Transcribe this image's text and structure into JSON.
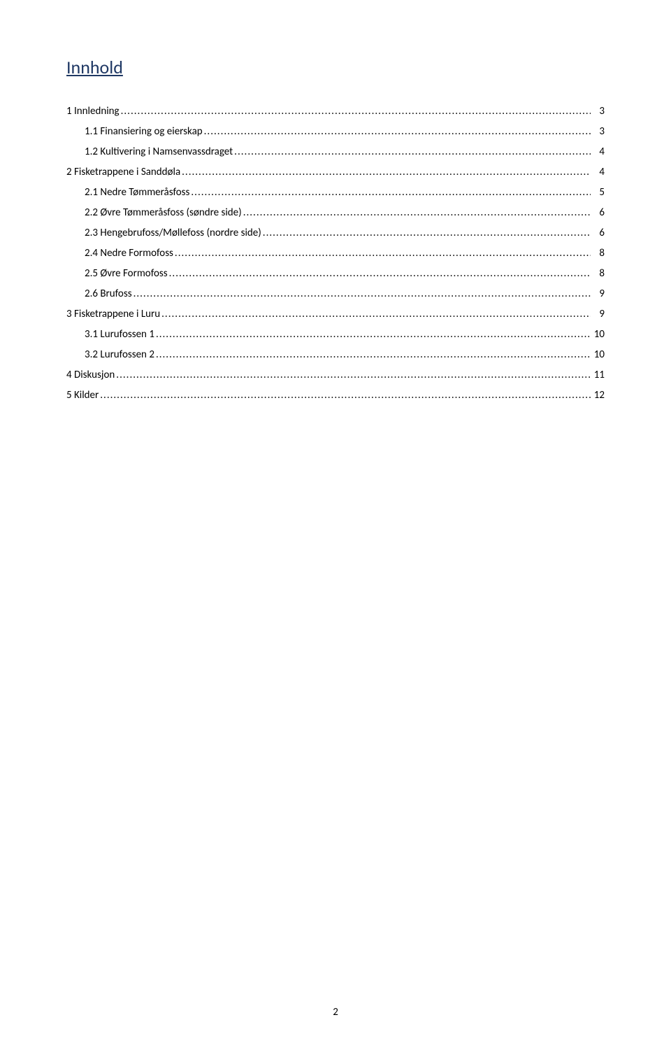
{
  "title": "Innhold",
  "toc": {
    "entries": [
      {
        "level": 1,
        "label": "1 Innledning",
        "page": "3"
      },
      {
        "level": 2,
        "label": "1.1 Finansiering og eierskap",
        "page": "3"
      },
      {
        "level": 2,
        "label": "1.2 Kultivering i Namsenvassdraget",
        "page": "4"
      },
      {
        "level": 1,
        "label": "2 Fisketrappene i Sanddøla",
        "page": "4"
      },
      {
        "level": 2,
        "label": "2.1 Nedre Tømmeråsfoss",
        "page": "5"
      },
      {
        "level": 2,
        "label": "2.2 Øvre Tømmeråsfoss (søndre side)",
        "page": "6"
      },
      {
        "level": 2,
        "label": "2.3 Hengebrufoss/Møllefoss (nordre side)",
        "page": "6"
      },
      {
        "level": 2,
        "label": "2.4 Nedre Formofoss",
        "page": "8"
      },
      {
        "level": 2,
        "label": "2.5 Øvre Formofoss",
        "page": "8"
      },
      {
        "level": 2,
        "label": "2.6 Brufoss",
        "page": "9"
      },
      {
        "level": 1,
        "label": "3 Fisketrappene i Luru",
        "page": "9"
      },
      {
        "level": 2,
        "label": "3.1 Lurufossen 1",
        "page": "10"
      },
      {
        "level": 2,
        "label": "3.2 Lurufossen 2",
        "page": "10"
      },
      {
        "level": 1,
        "label": "4 Diskusjon",
        "page": "11"
      },
      {
        "level": 1,
        "label": "5 Kilder",
        "page": "12"
      }
    ]
  },
  "page_number": "2",
  "colors": {
    "title_color": "#1f3864",
    "text_color": "#000000",
    "background": "#ffffff"
  }
}
